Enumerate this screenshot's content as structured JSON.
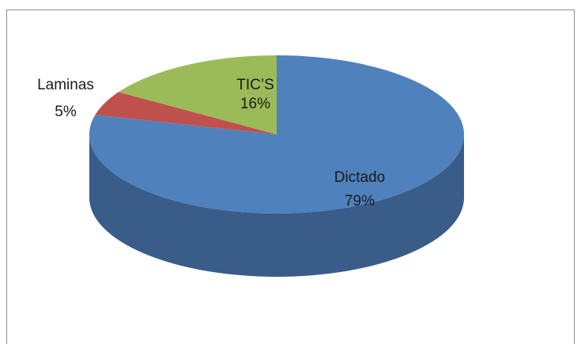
{
  "chart_data": {
    "type": "pie3d",
    "categories": [
      "Dictado",
      "Laminas",
      "TIC’S"
    ],
    "values": [
      79,
      5,
      16
    ],
    "value_labels": [
      "79%",
      "5%",
      "16%"
    ],
    "colors": [
      "#4f81bd",
      "#c0504d",
      "#9bbb59"
    ]
  }
}
